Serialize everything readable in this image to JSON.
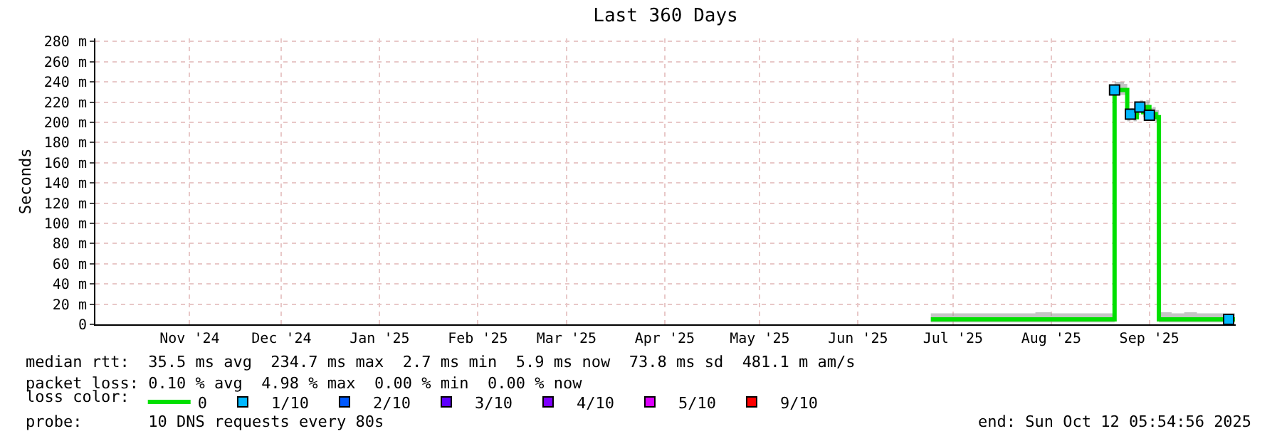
{
  "chart_data": {
    "type": "step",
    "title": "Last 360 Days",
    "ylabel": "Seconds",
    "legend_title": "loss color:",
    "legend": "bottom",
    "grid": true,
    "xlim": [
      "2024-10-17T05:55",
      "2025-10-12T05:55"
    ],
    "xticks": [
      {
        "value": "2024-11-16",
        "label": "Nov '24"
      },
      {
        "value": "2024-12-15",
        "label": "Dec '24"
      },
      {
        "value": "2025-01-15",
        "label": "Jan '25"
      },
      {
        "value": "2025-02-15",
        "label": "Feb '25"
      },
      {
        "value": "2025-03-15",
        "label": "Mar '25"
      },
      {
        "value": "2025-04-15",
        "label": "Apr '25"
      },
      {
        "value": "2025-05-15",
        "label": "May '25"
      },
      {
        "value": "2025-06-15",
        "label": "Jun '25"
      },
      {
        "value": "2025-07-15",
        "label": "Jul '25"
      },
      {
        "value": "2025-08-15",
        "label": "Aug '25"
      },
      {
        "value": "2025-09-15",
        "label": "Sep '25"
      }
    ],
    "ylim": [
      0,
      283
    ],
    "yticks": [
      0,
      {
        "value": 20,
        "label": "20 m"
      },
      {
        "value": 40,
        "label": "40 m"
      },
      {
        "value": 60,
        "label": "60 m"
      },
      {
        "value": 80,
        "label": "80 m"
      },
      {
        "value": 100,
        "label": "100 m"
      },
      {
        "value": 120,
        "label": "120 m"
      },
      {
        "value": 140,
        "label": "140 m"
      },
      {
        "value": 160,
        "label": "160 m"
      },
      {
        "value": 180,
        "label": "180 m"
      },
      {
        "value": 200,
        "label": "200 m"
      },
      {
        "value": 220,
        "label": "220 m"
      },
      {
        "value": 240,
        "label": "240 m"
      },
      {
        "value": 260,
        "label": "260 m"
      },
      {
        "value": 280,
        "label": "280 m"
      }
    ],
    "x": [
      "2025-07-08",
      "2025-07-12",
      "2025-07-16",
      "2025-07-19",
      "2025-07-20",
      "2025-07-25",
      "2025-07-30",
      "2025-08-05",
      "2025-08-10",
      "2025-08-15",
      "2025-08-20",
      "2025-08-25",
      "2025-08-30",
      "2025-09-04",
      "2025-09-05",
      "2025-09-07",
      "2025-09-08",
      "2025-09-09",
      "2025-09-10",
      "2025-09-11",
      "2025-09-12",
      "2025-09-13",
      "2025-09-14",
      "2025-09-15",
      "2025-09-16",
      "2025-09-17",
      "2025-09-18",
      "2025-09-22",
      "2025-09-26",
      "2025-09-30",
      "2025-10-04",
      "2025-10-08",
      "2025-10-12"
    ],
    "series": [
      {
        "name": "0",
        "color": "#00e000",
        "values": [
          5,
          5,
          5,
          5,
          5,
          5,
          5,
          5,
          5,
          5,
          5,
          5,
          5,
          232,
          232,
          232,
          205,
          208,
          205,
          212,
          215,
          210,
          215,
          207,
          208,
          205,
          5,
          5,
          5,
          5,
          5,
          5,
          5
        ],
        "lower": [
          2,
          2,
          2,
          2,
          2,
          2,
          2,
          2,
          2,
          2,
          2,
          2,
          2,
          227,
          227,
          227,
          201,
          203,
          201,
          207,
          210,
          205,
          210,
          202,
          203,
          200,
          2,
          2,
          2,
          2,
          2,
          2,
          2
        ],
        "upper": [
          11,
          11,
          11,
          11,
          11,
          11,
          11,
          11,
          12,
          11,
          11,
          11,
          11,
          240,
          240,
          238,
          212,
          214,
          212,
          219,
          222,
          217,
          222,
          214,
          215,
          212,
          12,
          11,
          12,
          11,
          11,
          11,
          11
        ]
      },
      {
        "name": "1/10",
        "color": "#00b8ff",
        "type": "scatter",
        "x": [
          "2025-09-04",
          "2025-09-09",
          "2025-09-12",
          "2025-09-15",
          "2025-10-10"
        ],
        "values": [
          232,
          208,
          215,
          207,
          5
        ]
      },
      {
        "name": "2/10",
        "color": "#0059ff",
        "type": "scatter",
        "values": [
          null,
          null,
          null,
          null,
          null,
          null,
          null,
          null,
          null,
          null,
          null,
          null,
          null,
          null,
          null,
          null,
          null,
          null,
          null,
          null,
          null,
          null,
          null,
          null,
          null,
          null,
          null,
          null,
          null,
          null,
          null,
          null,
          null
        ]
      },
      {
        "name": "3/10",
        "color": "#5e00ff",
        "type": "scatter",
        "values": [
          null,
          null,
          null,
          null,
          null,
          null,
          null,
          null,
          null,
          null,
          null,
          null,
          null,
          null,
          null,
          null,
          null,
          null,
          null,
          null,
          null,
          null,
          null,
          null,
          null,
          null,
          null,
          null,
          null,
          null,
          null,
          null,
          null
        ]
      },
      {
        "name": "4/10",
        "color": "#7e00ff",
        "type": "scatter",
        "values": [
          null,
          null,
          null,
          null,
          null,
          null,
          null,
          null,
          null,
          null,
          null,
          null,
          null,
          null,
          null,
          null,
          null,
          null,
          null,
          null,
          null,
          null,
          null,
          null,
          null,
          null,
          null,
          null,
          null,
          null,
          null,
          null,
          null
        ]
      },
      {
        "name": "5/10",
        "color": "#dd00ff",
        "type": "scatter",
        "values": [
          null,
          null,
          null,
          null,
          null,
          null,
          null,
          null,
          null,
          null,
          null,
          null,
          null,
          null,
          null,
          null,
          null,
          null,
          null,
          null,
          null,
          null,
          null,
          null,
          null,
          null,
          null,
          null,
          null,
          null,
          null,
          null,
          null
        ]
      },
      {
        "name": "9/10",
        "color": "#ff0000",
        "type": "scatter",
        "values": [
          null,
          null,
          null,
          null,
          null,
          null,
          null,
          null,
          null,
          null,
          null,
          null,
          null,
          null,
          null,
          null,
          null,
          null,
          null,
          null,
          null,
          null,
          null,
          null,
          null,
          null,
          null,
          null,
          null,
          null,
          null,
          null,
          null
        ]
      }
    ],
    "annotations": [
      "median rtt:  35.5 ms avg  234.7 ms max  2.7 ms min  5.9 ms now  73.8 ms sd  481.1 m am/s",
      "packet loss: 0.10 % avg  4.98 % max  0.00 % min  0.00 % now",
      "probe:       10 DNS requests every 80s",
      "end: Sun Oct 12 05:54:56 2025"
    ]
  }
}
